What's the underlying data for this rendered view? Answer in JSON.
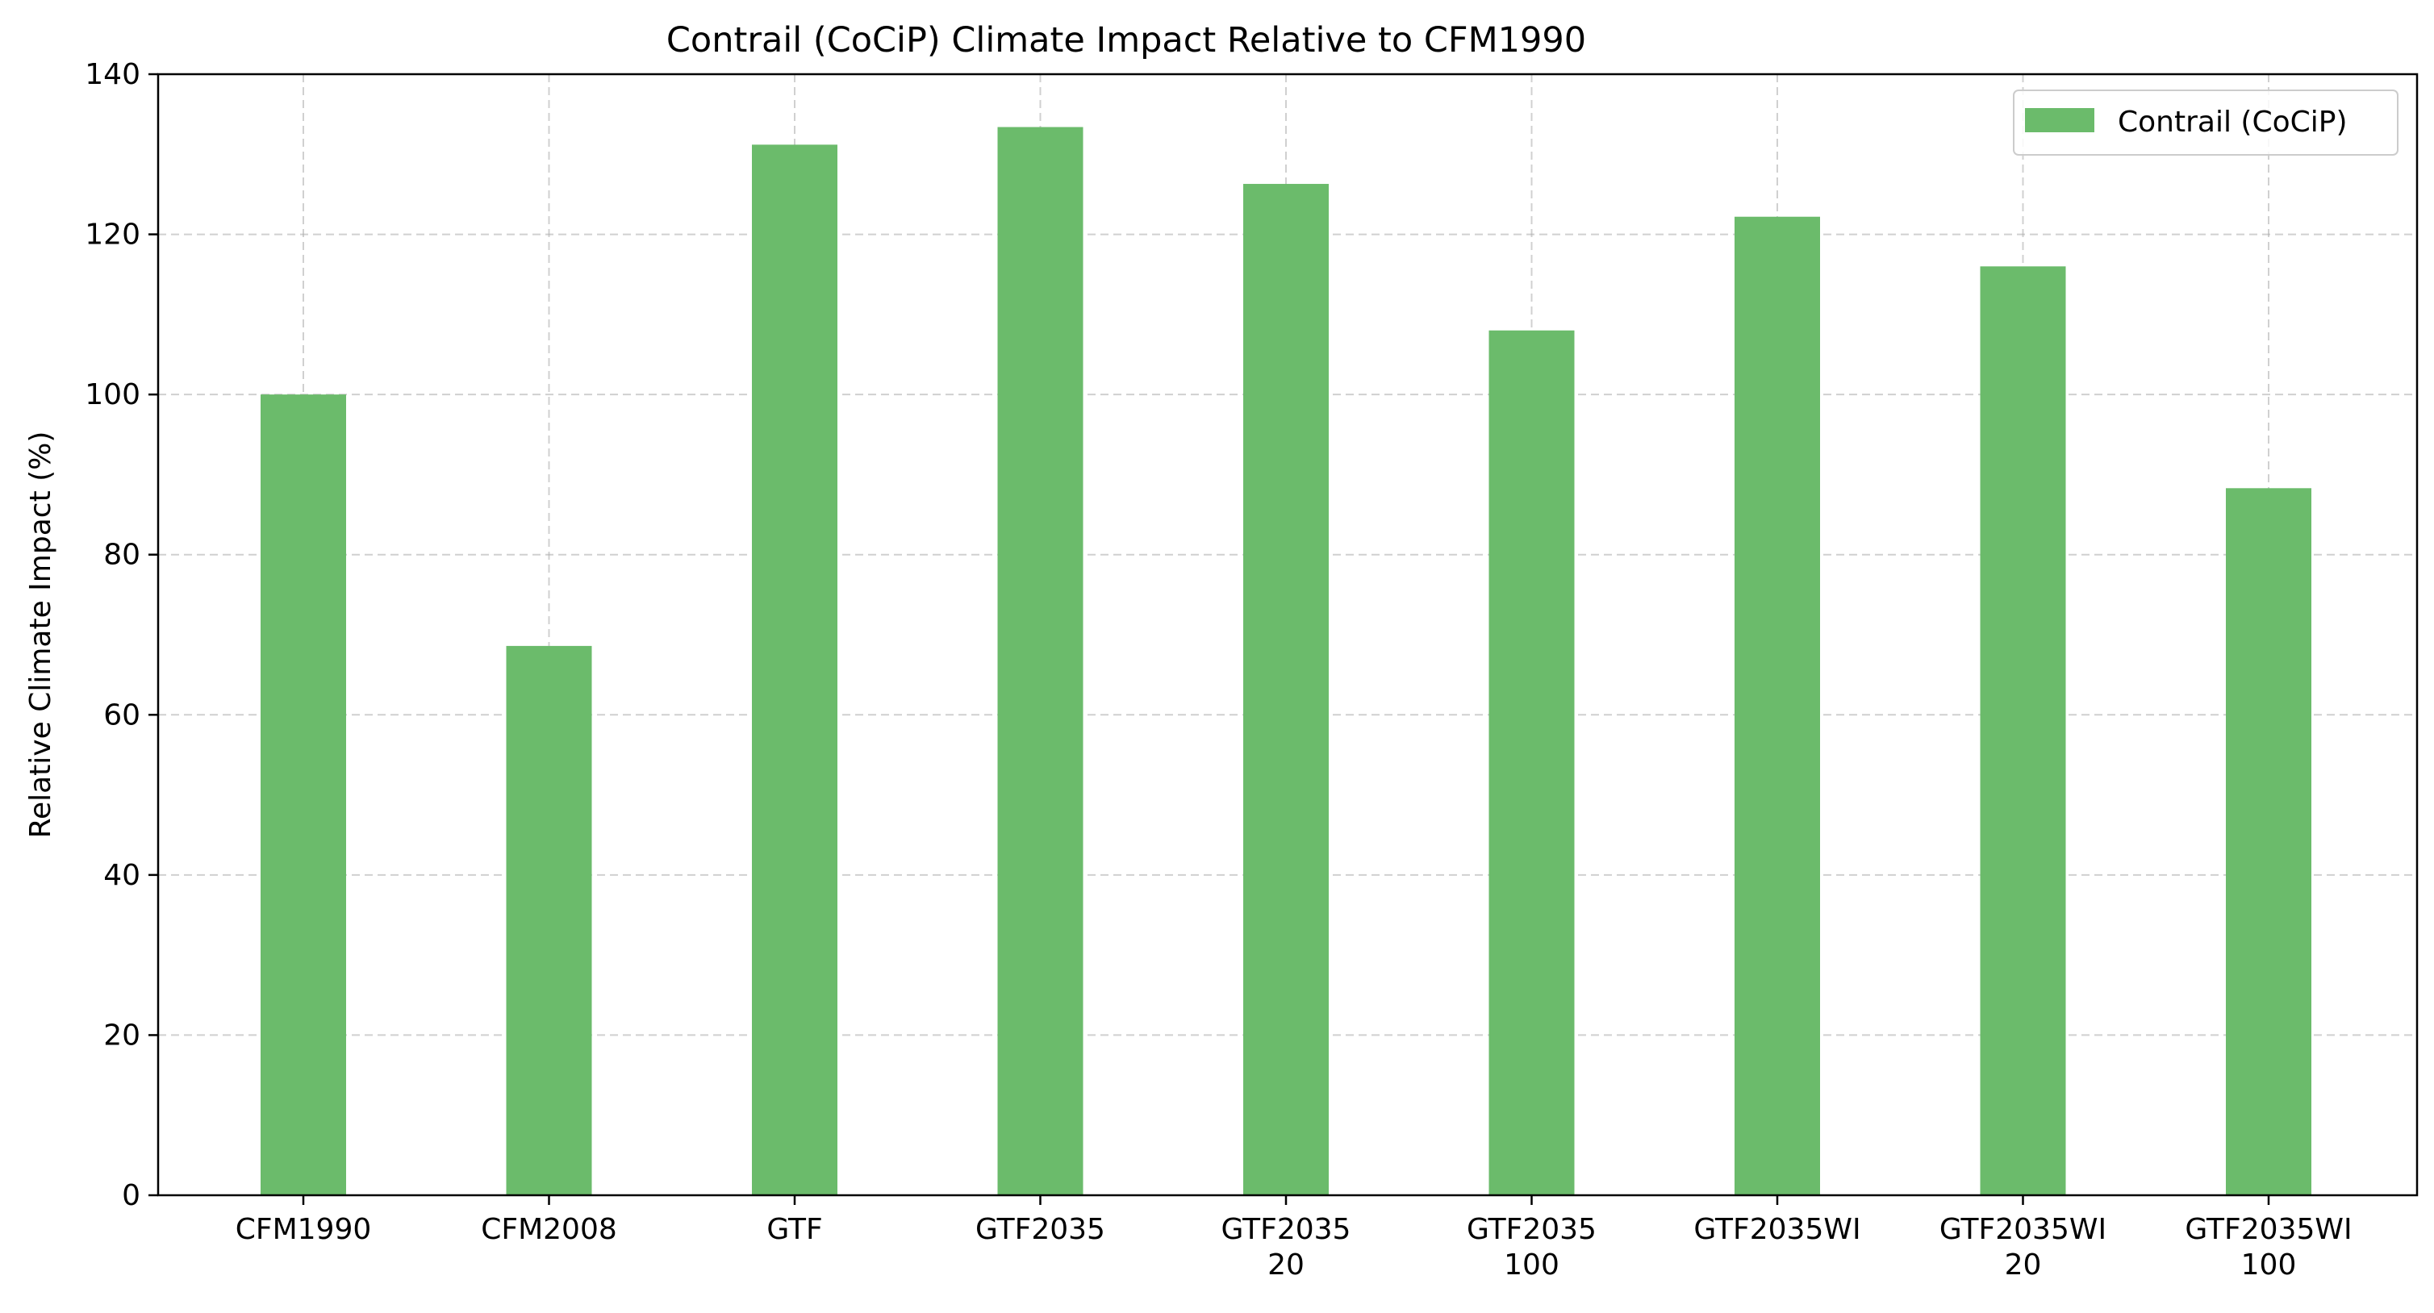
{
  "chart_data": {
    "type": "bar",
    "title": "Contrail (CoCiP) Climate Impact Relative to CFM1990",
    "xlabel": "",
    "ylabel": "Relative Climate Impact (%)",
    "ylim": [
      0,
      140
    ],
    "yticks": [
      0,
      20,
      40,
      60,
      80,
      100,
      120,
      140
    ],
    "grid": true,
    "legend_position": "top-right",
    "categories": [
      [
        "CFM1990"
      ],
      [
        "CFM2008"
      ],
      [
        "GTF"
      ],
      [
        "GTF2035"
      ],
      [
        "GTF2035",
        "20"
      ],
      [
        "GTF2035",
        "100"
      ],
      [
        "GTF2035WI"
      ],
      [
        "GTF2035WI",
        "20"
      ],
      [
        "GTF2035WI",
        "100"
      ]
    ],
    "series": [
      {
        "name": "Contrail (CoCiP)",
        "color": "#6bbb6b",
        "values": [
          100.0,
          68.6,
          131.2,
          133.4,
          126.3,
          108.0,
          122.2,
          116.0,
          88.3
        ]
      }
    ]
  }
}
